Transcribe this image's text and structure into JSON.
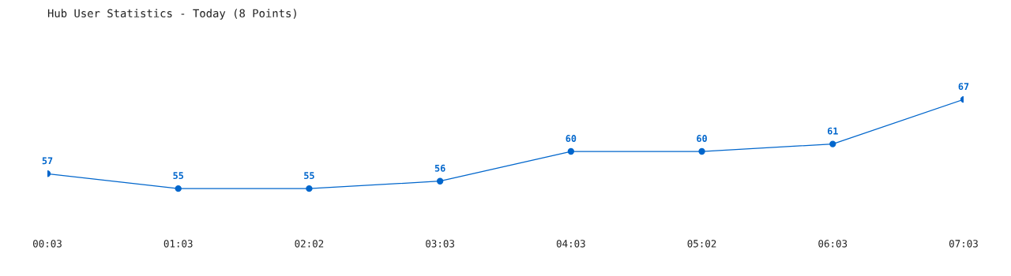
{
  "chart_data": {
    "type": "line",
    "title": "Hub User Statistics - Today (8 Points)",
    "categories": [
      "00:03",
      "01:03",
      "02:02",
      "03:03",
      "04:03",
      "05:02",
      "06:03",
      "07:03"
    ],
    "series": [
      {
        "color": "#0066cc",
        "values": [
          57,
          55,
          55,
          56,
          60,
          60,
          61,
          67
        ]
      }
    ],
    "data_labels": true,
    "marker": "circle",
    "line_style": "solid",
    "grid": false,
    "legend": false
  }
}
